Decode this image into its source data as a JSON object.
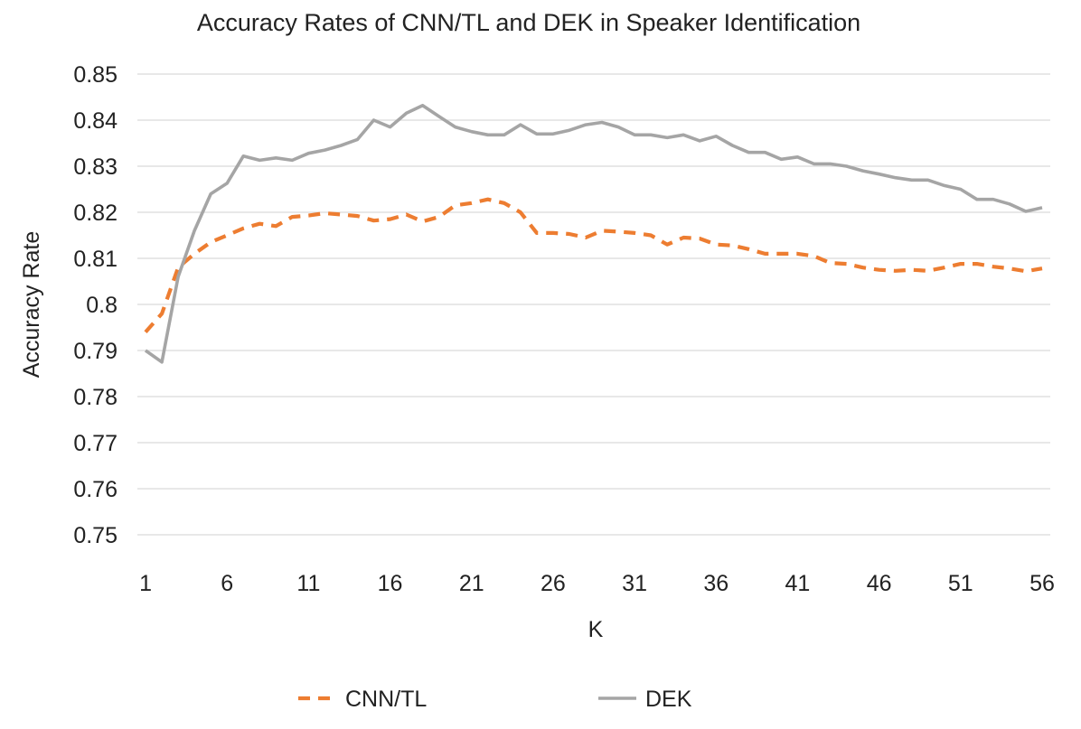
{
  "chart_data": {
    "type": "line",
    "title": "Accuracy Rates of CNN/TL and DEK in Speaker Identification",
    "xlabel": "K",
    "ylabel": "Accuracy Rate",
    "x": [
      1,
      2,
      3,
      4,
      5,
      6,
      7,
      8,
      9,
      10,
      11,
      12,
      13,
      14,
      15,
      16,
      17,
      18,
      19,
      20,
      21,
      22,
      23,
      24,
      25,
      26,
      27,
      28,
      29,
      30,
      31,
      32,
      33,
      34,
      35,
      36,
      37,
      38,
      39,
      40,
      41,
      42,
      43,
      44,
      45,
      46,
      47,
      48,
      49,
      50,
      51,
      52,
      53,
      54,
      55,
      56
    ],
    "x_ticks": [
      "1",
      "6",
      "11",
      "16",
      "21",
      "26",
      "31",
      "36",
      "41",
      "46",
      "51",
      "56"
    ],
    "ylim": [
      0.75,
      0.85
    ],
    "y_ticks": [
      "0.75",
      "0.76",
      "0.77",
      "0.78",
      "0.79",
      "0.8",
      "0.81",
      "0.82",
      "0.83",
      "0.84",
      "0.85"
    ],
    "grid": "horizontal",
    "legend_position": "bottom",
    "series": [
      {
        "name": "CNN/TL",
        "color": "#ed7d31",
        "dash": "dashed",
        "values": [
          0.794,
          0.798,
          0.808,
          0.811,
          0.8135,
          0.815,
          0.8165,
          0.8175,
          0.817,
          0.819,
          0.8193,
          0.8198,
          0.8195,
          0.8192,
          0.8182,
          0.8185,
          0.8195,
          0.818,
          0.819,
          0.8215,
          0.822,
          0.8228,
          0.822,
          0.82,
          0.8155,
          0.8155,
          0.8153,
          0.8145,
          0.816,
          0.8158,
          0.8155,
          0.815,
          0.813,
          0.8145,
          0.8143,
          0.813,
          0.8128,
          0.812,
          0.811,
          0.811,
          0.811,
          0.8105,
          0.809,
          0.8088,
          0.808,
          0.8075,
          0.8073,
          0.8075,
          0.8073,
          0.808,
          0.8088,
          0.8088,
          0.8082,
          0.8078,
          0.8072,
          0.8078
        ]
      },
      {
        "name": "DEK",
        "color": "#a5a5a5",
        "dash": "solid",
        "values": [
          0.79,
          0.7875,
          0.806,
          0.816,
          0.824,
          0.8263,
          0.8322,
          0.8313,
          0.8318,
          0.8313,
          0.8328,
          0.8335,
          0.8345,
          0.8358,
          0.84,
          0.8385,
          0.8415,
          0.8432,
          0.8408,
          0.8385,
          0.8375,
          0.8368,
          0.8368,
          0.839,
          0.837,
          0.837,
          0.8378,
          0.839,
          0.8395,
          0.8385,
          0.8368,
          0.8368,
          0.8362,
          0.8368,
          0.8355,
          0.8365,
          0.8345,
          0.833,
          0.833,
          0.8315,
          0.832,
          0.8305,
          0.8305,
          0.83,
          0.829,
          0.8283,
          0.8275,
          0.827,
          0.827,
          0.8258,
          0.825,
          0.8228,
          0.8228,
          0.8218,
          0.8202,
          0.821
        ]
      }
    ]
  }
}
